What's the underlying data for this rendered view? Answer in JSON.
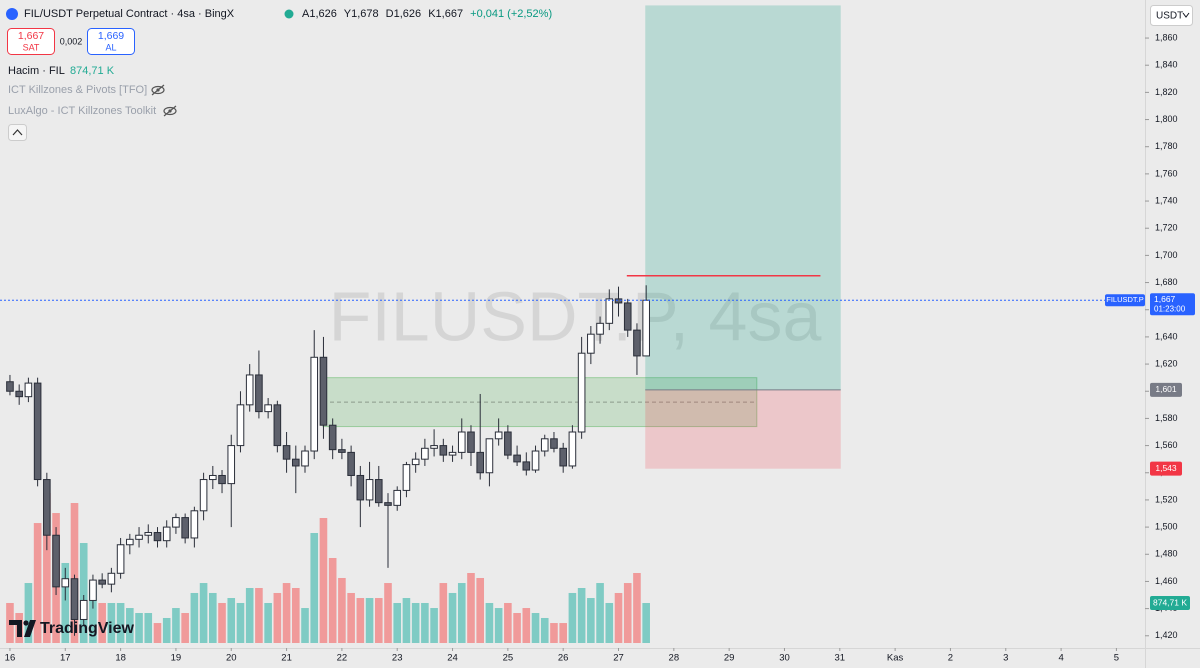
{
  "header": {
    "title": "FIL/USDT Perpetual Contract · 4sa · BingX",
    "ohlc": [
      "A1,626",
      "Y1,678",
      "D1,626",
      "K1,667"
    ],
    "change": "+0,041 (+2,52%)",
    "sell_price": "1,667",
    "sell_label": "SAT",
    "spread": "0,002",
    "buy_price": "1,669",
    "buy_label": "AL",
    "volume_title": "Hacim · FIL",
    "indicators": [
      "ICT Killzones & Pivots [TFO]",
      "LuxAlgo - ICT Killzones Toolkit"
    ],
    "currency": "USDT",
    "brand": "TradingView"
  },
  "chart_data": {
    "type": "candlestick",
    "watermark": "FILUSDT.P, 4sa",
    "open": [
      1.607,
      1.6,
      1.596,
      1.606,
      1.535,
      1.494,
      1.456,
      1.462,
      1.432,
      1.446,
      1.461,
      1.458,
      1.466,
      1.487,
      1.491,
      1.494,
      1.496,
      1.49,
      1.5,
      1.507,
      1.492,
      1.512,
      1.535,
      1.538,
      1.532,
      1.56,
      1.59,
      1.612,
      1.585,
      1.59,
      1.56,
      1.55,
      1.545,
      1.556,
      1.625,
      1.575,
      1.557,
      1.555,
      1.538,
      1.52,
      1.535,
      1.518,
      1.516,
      1.527,
      1.546,
      1.55,
      1.558,
      1.56,
      1.553,
      1.555,
      1.57,
      1.555,
      1.54,
      1.565,
      1.57,
      1.553,
      1.548,
      1.542,
      1.556,
      1.565,
      1.558,
      1.545,
      1.57,
      1.628,
      1.642,
      1.65,
      1.668,
      1.665,
      1.645,
      1.626
    ],
    "high": [
      1.612,
      1.605,
      1.61,
      1.61,
      1.54,
      1.5,
      1.47,
      1.465,
      1.45,
      1.465,
      1.466,
      1.47,
      1.492,
      1.495,
      1.5,
      1.502,
      1.5,
      1.505,
      1.51,
      1.51,
      1.515,
      1.54,
      1.545,
      1.542,
      1.568,
      1.6,
      1.62,
      1.63,
      1.595,
      1.593,
      1.57,
      1.56,
      1.56,
      1.645,
      1.64,
      1.58,
      1.565,
      1.56,
      1.545,
      1.548,
      1.545,
      1.525,
      1.53,
      1.548,
      1.555,
      1.565,
      1.572,
      1.565,
      1.56,
      1.58,
      1.575,
      1.598,
      1.565,
      1.58,
      1.575,
      1.56,
      1.555,
      1.56,
      1.568,
      1.57,
      1.562,
      1.575,
      1.64,
      1.648,
      1.655,
      1.675,
      1.677,
      1.668,
      1.65,
      1.678
    ],
    "low": [
      1.597,
      1.59,
      1.592,
      1.53,
      1.483,
      1.45,
      1.446,
      1.42,
      1.428,
      1.44,
      1.455,
      1.452,
      1.462,
      1.48,
      1.485,
      1.488,
      1.485,
      1.485,
      1.495,
      1.488,
      1.485,
      1.505,
      1.528,
      1.525,
      1.5,
      1.555,
      1.585,
      1.58,
      1.58,
      1.555,
      1.54,
      1.525,
      1.54,
      1.55,
      1.565,
      1.55,
      1.55,
      1.53,
      1.5,
      1.515,
      1.515,
      1.47,
      1.512,
      1.522,
      1.54,
      1.545,
      1.552,
      1.548,
      1.548,
      1.55,
      1.545,
      1.535,
      1.53,
      1.56,
      1.55,
      1.545,
      1.538,
      1.54,
      1.552,
      1.555,
      1.54,
      1.543,
      1.565,
      1.62,
      1.635,
      1.645,
      1.655,
      1.64,
      1.612,
      1.626
    ],
    "close": [
      1.6,
      1.596,
      1.606,
      1.535,
      1.494,
      1.456,
      1.462,
      1.432,
      1.446,
      1.461,
      1.458,
      1.466,
      1.487,
      1.491,
      1.494,
      1.496,
      1.49,
      1.5,
      1.507,
      1.492,
      1.512,
      1.535,
      1.538,
      1.532,
      1.56,
      1.59,
      1.612,
      1.585,
      1.59,
      1.56,
      1.55,
      1.545,
      1.556,
      1.625,
      1.575,
      1.557,
      1.555,
      1.538,
      1.52,
      1.535,
      1.518,
      1.516,
      1.527,
      1.546,
      1.55,
      1.558,
      1.56,
      1.553,
      1.555,
      1.57,
      1.555,
      1.54,
      1.565,
      1.57,
      1.553,
      1.548,
      1.542,
      1.556,
      1.565,
      1.558,
      1.545,
      1.57,
      1.628,
      1.642,
      1.65,
      1.668,
      1.665,
      1.645,
      1.626,
      1.667
    ],
    "volume": [
      875,
      656,
      1312,
      2624,
      3281,
      2843,
      1750,
      3062,
      2187,
      1312,
      875,
      875,
      875,
      765,
      656,
      656,
      437,
      547,
      765,
      656,
      1094,
      1312,
      1094,
      875,
      984,
      875,
      1203,
      1203,
      875,
      1094,
      1312,
      1203,
      765,
      2406,
      2734,
      1859,
      1422,
      1094,
      984,
      984,
      984,
      1312,
      875,
      984,
      875,
      875,
      765,
      1312,
      1094,
      1312,
      1531,
      1422,
      875,
      765,
      875,
      656,
      765,
      656,
      547,
      437,
      437,
      1094,
      1203,
      984,
      1312,
      875,
      1094,
      1312,
      1531,
      874.71
    ],
    "volume_label": "874,71 K",
    "up_color": "#ffffff",
    "down_color": "#5d606b",
    "wick_color": "#2a2e39",
    "volume_up_color": "#7fcbc4",
    "volume_down_color": "#f09a9a",
    "xlim": [
      -1.08,
      123.1
    ],
    "xticks": [
      {
        "value": 0,
        "label": "16"
      },
      {
        "value": 6,
        "label": "17"
      },
      {
        "value": 12,
        "label": "18"
      },
      {
        "value": 18,
        "label": "19"
      },
      {
        "value": 24,
        "label": "20"
      },
      {
        "value": 30,
        "label": "21"
      },
      {
        "value": 36,
        "label": "22"
      },
      {
        "value": 42,
        "label": "23"
      },
      {
        "value": 48,
        "label": "24"
      },
      {
        "value": 54,
        "label": "25"
      },
      {
        "value": 60,
        "label": "26"
      },
      {
        "value": 66,
        "label": "27"
      },
      {
        "value": 72,
        "label": "28"
      },
      {
        "value": 78,
        "label": "29"
      },
      {
        "value": 84,
        "label": "30"
      },
      {
        "value": 90,
        "label": "31"
      },
      {
        "value": 96,
        "label": "Kas"
      },
      {
        "value": 102,
        "label": "2"
      },
      {
        "value": 108,
        "label": "3"
      },
      {
        "value": 114,
        "label": "4"
      },
      {
        "value": 120,
        "label": "5"
      }
    ],
    "ylim": [
      1.411,
      1.888
    ],
    "yticks": [
      {
        "value": 1.86,
        "label": "1,860"
      },
      {
        "value": 1.84,
        "label": "1,840"
      },
      {
        "value": 1.82,
        "label": "1,820"
      },
      {
        "value": 1.8,
        "label": "1,800"
      },
      {
        "value": 1.78,
        "label": "1,780"
      },
      {
        "value": 1.76,
        "label": "1,760"
      },
      {
        "value": 1.74,
        "label": "1,740"
      },
      {
        "value": 1.72,
        "label": "1,720"
      },
      {
        "value": 1.7,
        "label": "1,700"
      },
      {
        "value": 1.68,
        "label": "1,680"
      },
      {
        "value": 1.66,
        "label": "1,660"
      },
      {
        "value": 1.64,
        "label": "1,640"
      },
      {
        "value": 1.62,
        "label": "1,620"
      },
      {
        "value": 1.6,
        "label": "1,600"
      },
      {
        "value": 1.58,
        "label": "1,580"
      },
      {
        "value": 1.56,
        "label": "1,560"
      },
      {
        "value": 1.54,
        "label": "1,540"
      },
      {
        "value": 1.52,
        "label": "1,520"
      },
      {
        "value": 1.5,
        "label": "1,500"
      },
      {
        "value": 1.48,
        "label": "1,480"
      },
      {
        "value": 1.46,
        "label": "1,460"
      },
      {
        "value": 1.44,
        "label": "1,440"
      },
      {
        "value": 1.42,
        "label": "1,420"
      }
    ],
    "last_price": {
      "value": 1.667,
      "label": "1,667",
      "symbol": "FILUSDT.P",
      "countdown": "01:23:00",
      "color": "#2962ff"
    },
    "position": {
      "x": [
        68.9,
        90.1
      ],
      "target": 1.884,
      "entry": 1.601,
      "entry_label": "1,601",
      "stop": 1.543,
      "stop_label": "1,543"
    },
    "zone": {
      "x": [
        33.95,
        81.0
      ],
      "top": 1.61,
      "bottom": 1.574,
      "mid": 1.592
    },
    "level": {
      "x": [
        66.9,
        87.9
      ],
      "value": 1.685,
      "color": "#f23645"
    }
  }
}
